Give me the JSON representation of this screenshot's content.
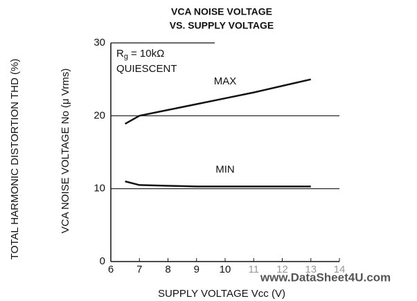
{
  "chart_data": {
    "type": "line",
    "title": [
      "VCA NOISE VOLTAGE",
      "VS. SUPPLY VOLTAGE"
    ],
    "x_label": "SUPPLY VOLTAGE Vcc (V)",
    "y_label": "VCA NOISE VOLTAGE No (μ Vrms)",
    "outer_label": "TOTAL HARMONIC DISTORTION THD (%)",
    "annotations": {
      "resistor": "R",
      "resistor_sub": "g",
      "resistor_value": "= 10kΩ",
      "condition": "QUIESCENT"
    },
    "watermark": "www.DataSheet4U.com",
    "x": [
      6.5,
      7,
      8,
      9,
      10,
      11,
      12,
      13
    ],
    "series": [
      {
        "name": "MAX",
        "color": "#111",
        "values": [
          18.9,
          20,
          20.8,
          21.6,
          22.4,
          23.2,
          24.1,
          25
        ]
      },
      {
        "name": "MIN",
        "color": "#111",
        "values": [
          11,
          10.5,
          10.4,
          10.3,
          10.3,
          10.3,
          10.3,
          10.3
        ]
      }
    ],
    "xlim": [
      6,
      14
    ],
    "xticks": [
      6,
      7,
      8,
      9,
      10,
      11,
      12,
      13,
      14
    ],
    "ylim": [
      0,
      30
    ],
    "yticks": [
      0,
      10,
      20,
      30
    ],
    "grid": true
  }
}
